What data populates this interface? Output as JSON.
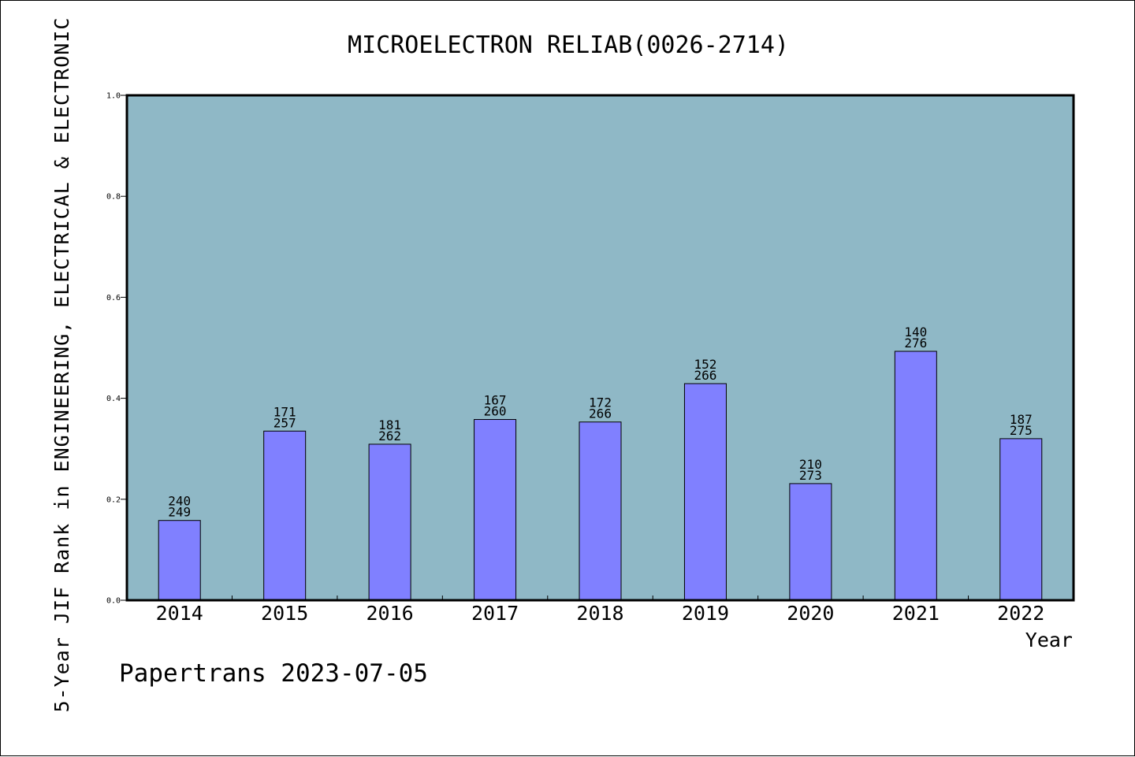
{
  "chart_data": {
    "type": "bar",
    "title": "MICROELECTRON RELIAB(0026-2714)",
    "xlabel": "Year",
    "ylabel": "5-Year JIF Rank in ENGINEERING, ELECTRICAL & ELECTRONIC",
    "ylim": [
      0.0,
      1.0
    ],
    "yticks": [
      "0.0",
      "0.2",
      "0.4",
      "0.6",
      "0.8",
      "1.0"
    ],
    "categories": [
      "2014",
      "2015",
      "2016",
      "2017",
      "2018",
      "2019",
      "2020",
      "2021",
      "2022"
    ],
    "values": [
      0.158,
      0.335,
      0.309,
      0.358,
      0.353,
      0.429,
      0.231,
      0.493,
      0.32
    ],
    "labels_top": [
      "240",
      "171",
      "181",
      "167",
      "172",
      "152",
      "210",
      "140",
      "187"
    ],
    "labels_bottom": [
      "249",
      "257",
      "262",
      "260",
      "266",
      "266",
      "273",
      "276",
      "275"
    ],
    "grid": false,
    "legend": "none",
    "colors": {
      "plot_background": "#8fb8c6",
      "bar_fill": "#8080ff",
      "bar_stroke": "#000000",
      "axis": "#000000"
    }
  },
  "footer": {
    "text": "Papertrans 2023-07-05"
  }
}
